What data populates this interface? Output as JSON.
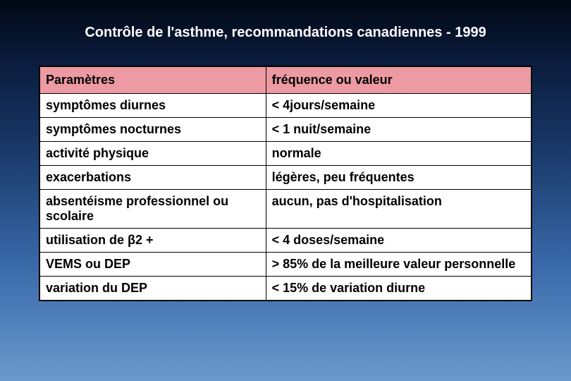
{
  "title": "Contrôle de l'asthme, recommandations canadiennes - 1999",
  "table": {
    "header_bg": "#ed9aa3",
    "cell_bg": "#ffffff",
    "border_color": "#000000",
    "font_family": "Arial",
    "header_fontsize": 18,
    "cell_fontsize": 18,
    "columns": [
      "Paramètres",
      "fréquence ou valeur"
    ],
    "rows": [
      {
        "param": "symptômes diurnes",
        "freq": "< 4jours/semaine"
      },
      {
        "param": "symptômes nocturnes",
        "freq": "< 1 nuit/semaine"
      },
      {
        "param": "activité physique",
        "freq": "normale"
      },
      {
        "param": "exacerbations",
        "freq": "légères, peu fréquentes"
      },
      {
        "param": "absentéisme professionnel ou scolaire",
        "freq": "aucun, pas d'hospitalisation"
      },
      {
        "param": "utilisation de β2 +",
        "freq": "< 4 doses/semaine"
      },
      {
        "param": "VEMS ou DEP",
        "freq": "> 85% de la meilleure valeur personnelle"
      },
      {
        "param": "variation du DEP",
        "freq": "< 15% de variation diurne"
      }
    ]
  },
  "background": {
    "gradient_stops": [
      "#000814",
      "#0a1a3a",
      "#1a3a6a",
      "#3a6aaa",
      "#6a9acc"
    ]
  }
}
